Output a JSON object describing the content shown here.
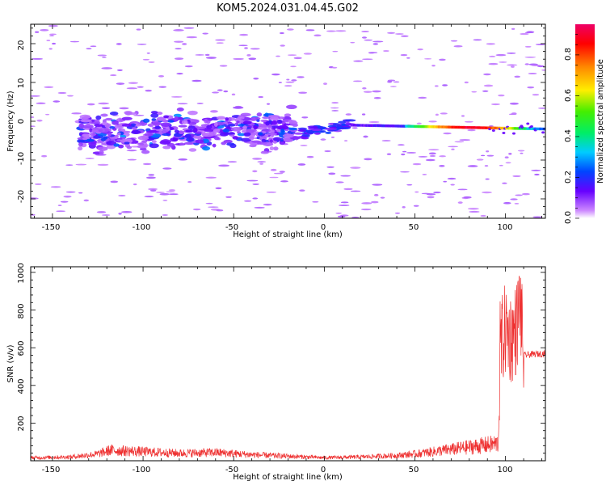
{
  "figure_title": "KOM5.2024.031.04.45.G02",
  "colors": {
    "trace": "#ee3030",
    "purple_light": "#cc99ff",
    "purple": "#8833ff",
    "blue": "#3300ee"
  },
  "chart_data": [
    {
      "type": "heatmap",
      "title": "KOM5.2024.031.04.45.G02",
      "xlabel": "Height of straight line (km)",
      "ylabel": "Frequency (Hz)",
      "xlim": [
        -162,
        122
      ],
      "ylim": [
        -25,
        25
      ],
      "xticks": [
        "-150",
        "-100",
        "-50",
        "0",
        "50",
        "100"
      ],
      "yticks": [
        "-20",
        "-10",
        "0",
        "10",
        "20"
      ],
      "colorbar": {
        "label": "Normalized spectral amplitude",
        "range": [
          0.0,
          0.95
        ],
        "ticks": [
          "0.0",
          "0.2",
          "0.4",
          "0.6",
          "0.8"
        ],
        "colormap": "rainbow"
      },
      "features": [
        {
          "name": "diffuse cloud",
          "x_range": [
            -135,
            -15
          ],
          "frequency_center": -3,
          "frequency_spread": 5,
          "amplitude": 0.2
        },
        {
          "name": "transition",
          "x_range": [
            -15,
            15
          ],
          "frequency_center": 0,
          "frequency_spread": 1.5,
          "amplitude": 0.25
        },
        {
          "name": "coherent band",
          "x_range": [
            15,
            122
          ],
          "frequency_center_start": -1,
          "frequency_center_end": -2,
          "amplitude_peak": 0.95,
          "amplitude_peak_x": 80
        }
      ]
    },
    {
      "type": "line",
      "xlabel": "Height of straight line (km)",
      "ylabel": "SNR (v/v)",
      "xlim": [
        -162,
        122
      ],
      "ylim": [
        0,
        1030
      ],
      "xticks": [
        "-150",
        "-100",
        "-50",
        "0",
        "50",
        "100"
      ],
      "yticks": [
        "200",
        "400",
        "600",
        "800",
        "1000"
      ],
      "series": [
        {
          "description": "noisy SNR trace",
          "envelope_x": [
            -162,
            -140,
            -125,
            -118,
            -100,
            -80,
            -60,
            -40,
            -20,
            0,
            20,
            40,
            50,
            60,
            70,
            80,
            90,
            96,
            97,
            100,
            103,
            106,
            108,
            110,
            115,
            122
          ],
          "envelope_y": [
            20,
            25,
            45,
            70,
            60,
            50,
            55,
            40,
            30,
            20,
            25,
            35,
            45,
            60,
            75,
            90,
            105,
            115,
            600,
            700,
            650,
            700,
            850,
            560,
            565,
            570
          ]
        }
      ]
    }
  ]
}
